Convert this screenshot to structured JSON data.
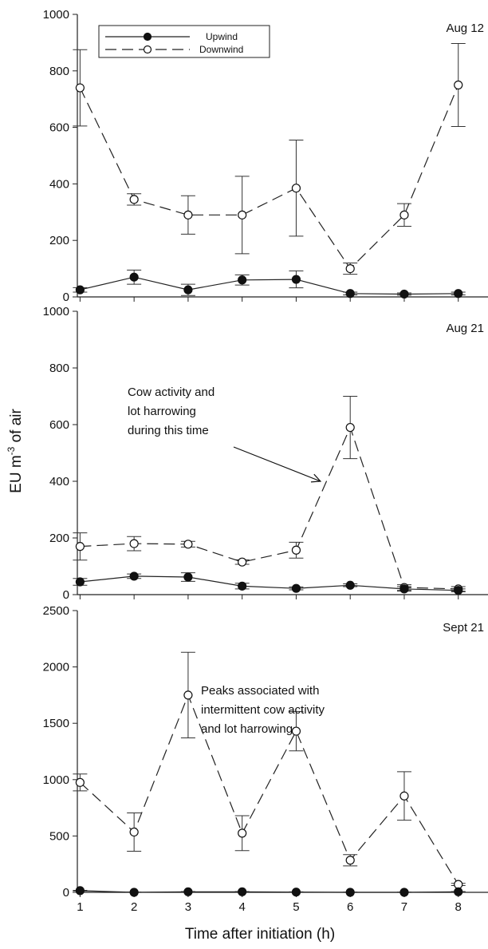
{
  "chart_data": {
    "type": "line",
    "ylabel_pre": "EU m",
    "ylabel_sup": "-3",
    "ylabel_post": " of air",
    "xlabel": "Time after initiation (h)",
    "x": [
      1,
      2,
      3,
      4,
      5,
      6,
      7,
      8
    ],
    "xlim": [
      0.95,
      8.55
    ],
    "legend": {
      "placement": "top-left of top panel",
      "entries": [
        {
          "name": "Upwind",
          "marker": "filled-circle",
          "line": "solid"
        },
        {
          "name": "Downwind",
          "marker": "open-circle",
          "line": "dashed"
        }
      ]
    },
    "panels": [
      {
        "label": "Aug 12",
        "ylim": [
          0,
          1000
        ],
        "yticks": [
          0,
          200,
          400,
          600,
          800,
          1000
        ],
        "series": [
          {
            "name": "Upwind",
            "values": [
              25,
              70,
              25,
              60,
              62,
              12,
              10,
              12
            ],
            "err": [
              8,
              25,
              20,
              18,
              30,
              5,
              4,
              5
            ]
          },
          {
            "name": "Downwind",
            "values": [
              740,
              345,
              290,
              290,
              385,
              100,
              290,
              750
            ],
            "err": [
              135,
              20,
              68,
              137,
              170,
              20,
              40,
              147
            ]
          }
        ],
        "annotation": null
      },
      {
        "label": "Aug 21",
        "ylim": [
          0,
          1000
        ],
        "yticks": [
          0,
          200,
          400,
          600,
          800,
          1000
        ],
        "series": [
          {
            "name": "Upwind",
            "values": [
              45,
              65,
              62,
              30,
              22,
              33,
              20,
              15
            ],
            "err": [
              12,
              8,
              15,
              10,
              5,
              5,
              8,
              5
            ]
          },
          {
            "name": "Downwind",
            "values": [
              170,
              180,
              178,
              115,
              157,
              590,
              25,
              20
            ],
            "err": [
              48,
              25,
              10,
              8,
              28,
              110,
              10,
              8
            ]
          }
        ],
        "annotation": {
          "lines": [
            "Cow activity and",
            "lot harrowing",
            "during this time"
          ],
          "arrow_to": [
            5.45,
            400
          ]
        }
      },
      {
        "label": "Sept 21",
        "ylim": [
          0,
          2500
        ],
        "yticks": [
          0,
          500,
          1000,
          1500,
          2000,
          2500
        ],
        "series": [
          {
            "name": "Upwind",
            "values": [
              15,
              0,
              5,
              5,
              2,
              0,
              0,
              5
            ],
            "err": [
              3,
              2,
              2,
              2,
              2,
              2,
              2,
              2
            ]
          },
          {
            "name": "Downwind",
            "values": [
              975,
              535,
              1750,
              525,
              1430,
              285,
              855,
              70
            ],
            "err": [
              75,
              170,
              380,
              155,
              175,
              50,
              215,
              10
            ]
          }
        ],
        "annotation": {
          "lines": [
            "Peaks associated with",
            "intermittent cow activity",
            "and lot harrowing"
          ],
          "arrow_to": null
        }
      }
    ]
  }
}
